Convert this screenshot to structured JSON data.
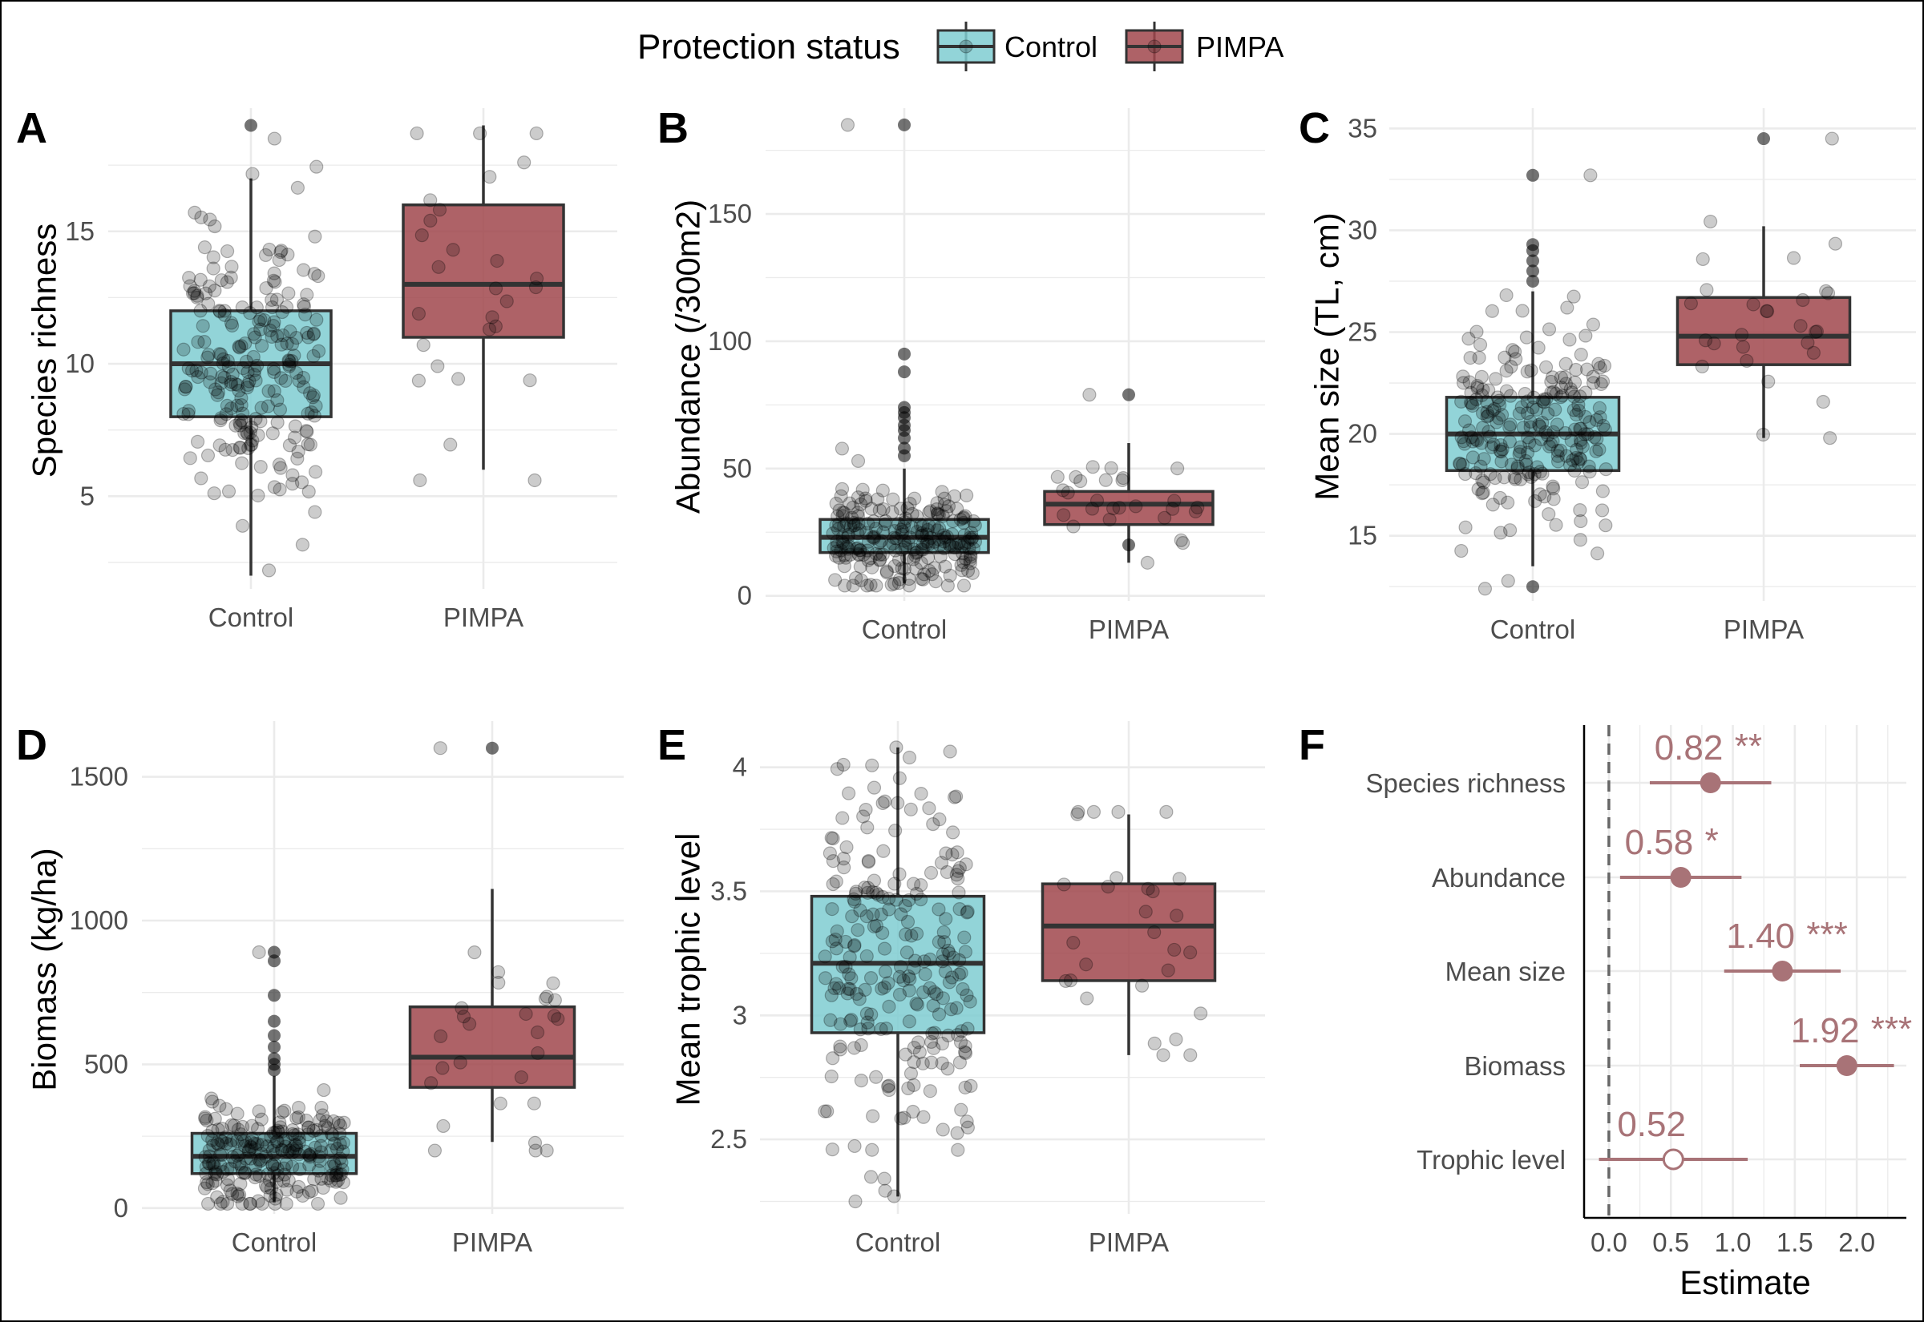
{
  "legend": {
    "title": "Protection status",
    "items": [
      {
        "label": "Control",
        "color": "#7fcdd1"
      },
      {
        "label": "PIMPA",
        "color": "#a0474c"
      }
    ]
  },
  "colors": {
    "control": "#7fcdd1",
    "pimpa": "#a0474c",
    "estimate": "#a87377",
    "border": "#333333",
    "grid": "#ebebeb"
  },
  "chart_data": [
    {
      "panel": "A",
      "type": "box",
      "ylabel": "Species richness",
      "categories": [
        "Control",
        "PIMPA"
      ],
      "ylim": [
        1.5,
        19.5
      ],
      "yticks": [
        5,
        10,
        15
      ],
      "boxes": [
        {
          "group": "Control",
          "q1": 8,
          "median": 10,
          "q3": 12,
          "whisker_low": 2,
          "whisker_high": 17,
          "outliers": [
            19
          ],
          "n_points": 230,
          "point_range": [
            2.2,
            18.5
          ]
        },
        {
          "group": "PIMPA",
          "q1": 11,
          "median": 13,
          "q3": 16,
          "whisker_low": 6,
          "whisker_high": 19,
          "outliers": [],
          "n_points": 28,
          "point_range": [
            5.6,
            18.7
          ]
        }
      ]
    },
    {
      "panel": "B",
      "type": "box",
      "ylabel": "Abundance (/300m2)",
      "categories": [
        "Control",
        "PIMPA"
      ],
      "ylim": [
        -2,
        190
      ],
      "yticks": [
        0,
        50,
        100,
        150
      ],
      "boxes": [
        {
          "group": "Control",
          "q1": 17,
          "median": 23,
          "q3": 30,
          "whisker_low": 5,
          "whisker_high": 50,
          "outliers": [
            55,
            58,
            62,
            65,
            67,
            70,
            72,
            74,
            88,
            95,
            185
          ],
          "n_points": 240,
          "point_range": [
            4,
            185
          ]
        },
        {
          "group": "PIMPA",
          "q1": 28,
          "median": 36,
          "q3": 41,
          "whisker_low": 13,
          "whisker_high": 60,
          "outliers": [
            20,
            79
          ],
          "n_points": 28,
          "point_range": [
            13,
            79
          ]
        }
      ]
    },
    {
      "panel": "C",
      "type": "box",
      "ylabel": "Mean size (TL, cm)",
      "categories": [
        "Control",
        "PIMPA"
      ],
      "ylim": [
        11.8,
        35.8
      ],
      "yticks": [
        15,
        20,
        25,
        30,
        35
      ],
      "boxes": [
        {
          "group": "Control",
          "q1": 18.2,
          "median": 20,
          "q3": 21.8,
          "whisker_low": 13.5,
          "whisker_high": 27,
          "outliers": [
            12.5,
            27.5,
            28,
            28.5,
            29,
            29.3,
            32.7
          ],
          "n_points": 240,
          "point_range": [
            12.4,
            32.7
          ]
        },
        {
          "group": "PIMPA",
          "q1": 23.4,
          "median": 24.8,
          "q3": 26.7,
          "whisker_low": 19.8,
          "whisker_high": 30.2,
          "outliers": [
            34.5
          ],
          "n_points": 28,
          "point_range": [
            19.8,
            34.5
          ]
        }
      ]
    },
    {
      "panel": "D",
      "type": "box",
      "ylabel": "Biomass (kg/ha)",
      "categories": [
        "Control",
        "PIMPA"
      ],
      "ylim": [
        -20,
        1680
      ],
      "yticks": [
        0,
        500,
        1000,
        1500
      ],
      "boxes": [
        {
          "group": "Control",
          "q1": 120,
          "median": 180,
          "q3": 260,
          "whisker_low": 20,
          "whisker_high": 460,
          "outliers": [
            480,
            500,
            520,
            560,
            600,
            650,
            740,
            860,
            890
          ],
          "n_points": 240,
          "point_range": [
            15,
            890
          ]
        },
        {
          "group": "PIMPA",
          "q1": 420,
          "median": 525,
          "q3": 700,
          "whisker_low": 230,
          "whisker_high": 1110,
          "outliers": [
            1600
          ],
          "n_points": 28,
          "point_range": [
            200,
            1600
          ]
        }
      ]
    },
    {
      "panel": "E",
      "type": "box",
      "ylabel": "Mean trophic level",
      "categories": [
        "Control",
        "PIMPA"
      ],
      "ylim": [
        2.2,
        4.17
      ],
      "yticks": [
        2.5,
        3.0,
        3.5,
        4.0
      ],
      "boxes": [
        {
          "group": "Control",
          "q1": 2.93,
          "median": 3.21,
          "q3": 3.48,
          "whisker_low": 2.27,
          "whisker_high": 4.08,
          "outliers": [],
          "n_points": 240,
          "point_range": [
            2.25,
            4.08
          ]
        },
        {
          "group": "PIMPA",
          "q1": 3.14,
          "median": 3.36,
          "q3": 3.53,
          "whisker_low": 2.84,
          "whisker_high": 3.81,
          "outliers": [],
          "n_points": 28,
          "point_range": [
            2.84,
            3.82
          ]
        }
      ]
    },
    {
      "panel": "F",
      "type": "forest",
      "xlabel": "Estimate",
      "xlim": [
        -0.2,
        2.4
      ],
      "xticks": [
        0.0,
        0.5,
        1.0,
        1.5,
        2.0
      ],
      "xtick_labels": [
        "0.0",
        "0.5",
        "1.0",
        "1.5",
        "2.0"
      ],
      "ref_line": 0,
      "rows": [
        {
          "name": "Species richness",
          "estimate": 0.82,
          "low": 0.33,
          "high": 1.31,
          "label": "0.82",
          "stars": "**",
          "significant": true
        },
        {
          "name": "Abundance",
          "estimate": 0.58,
          "low": 0.09,
          "high": 1.07,
          "label": "0.58",
          "stars": "*",
          "significant": true
        },
        {
          "name": "Mean size",
          "estimate": 1.4,
          "low": 0.93,
          "high": 1.87,
          "label": "1.40",
          "stars": "***",
          "significant": true
        },
        {
          "name": "Biomass",
          "estimate": 1.92,
          "low": 1.54,
          "high": 2.3,
          "label": "1.92",
          "stars": "***",
          "significant": true
        },
        {
          "name": "Trophic level",
          "estimate": 0.52,
          "low": -0.08,
          "high": 1.12,
          "label": "0.52",
          "stars": "",
          "significant": false
        }
      ]
    }
  ]
}
